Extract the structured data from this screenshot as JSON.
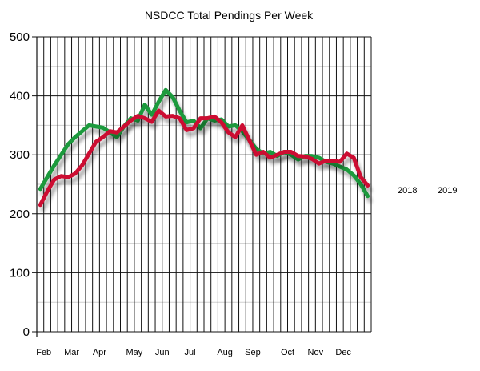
{
  "chart_data": {
    "type": "line",
    "title": "NSDCC Total Pendings Per Week",
    "ylim": [
      0,
      500
    ],
    "yticks": [
      0,
      100,
      200,
      300,
      400,
      500
    ],
    "grid": true,
    "legend_position": "right",
    "months": [
      {
        "label": "Feb",
        "week": 1
      },
      {
        "label": "Mar",
        "week": 5
      },
      {
        "label": "Apr",
        "week": 9
      },
      {
        "label": "May",
        "week": 14
      },
      {
        "label": "Jun",
        "week": 18
      },
      {
        "label": "Jul",
        "week": 22
      },
      {
        "label": "Aug",
        "week": 27
      },
      {
        "label": "Sep",
        "week": 31
      },
      {
        "label": "Oct",
        "week": 36
      },
      {
        "label": "Nov",
        "week": 40
      },
      {
        "label": "Dec",
        "week": 44
      }
    ],
    "x": [
      0,
      1,
      2,
      3,
      4,
      5,
      6,
      7,
      8,
      9,
      10,
      11,
      12,
      13,
      14,
      15,
      16,
      17,
      18,
      19,
      20,
      21,
      22,
      23,
      24,
      25,
      26,
      27,
      28,
      29,
      30,
      31,
      32,
      33,
      34,
      35,
      36,
      37,
      38,
      39,
      40,
      41,
      42,
      43,
      44,
      45,
      46,
      47
    ],
    "series": [
      {
        "name": "2018",
        "color": "#1f9a3d",
        "values": [
          242,
          262,
          282,
          300,
          318,
          330,
          340,
          350,
          348,
          346,
          338,
          330,
          348,
          362,
          358,
          385,
          368,
          390,
          410,
          398,
          375,
          355,
          358,
          345,
          362,
          358,
          360,
          348,
          350,
          340,
          325,
          310,
          302,
          305,
          298,
          305,
          300,
          292,
          298,
          298,
          295,
          288,
          285,
          280,
          275,
          265,
          250,
          230
        ]
      },
      {
        "name": "2019",
        "color": "#cc1133",
        "values": [
          215,
          238,
          258,
          264,
          262,
          268,
          282,
          302,
          322,
          330,
          340,
          338,
          348,
          358,
          366,
          362,
          356,
          375,
          365,
          366,
          362,
          342,
          345,
          362,
          362,
          365,
          355,
          338,
          330,
          350,
          325,
          300,
          305,
          295,
          300,
          305,
          305,
          298,
          297,
          293,
          285,
          290,
          290,
          288,
          302,
          295,
          262,
          248
        ]
      }
    ]
  }
}
